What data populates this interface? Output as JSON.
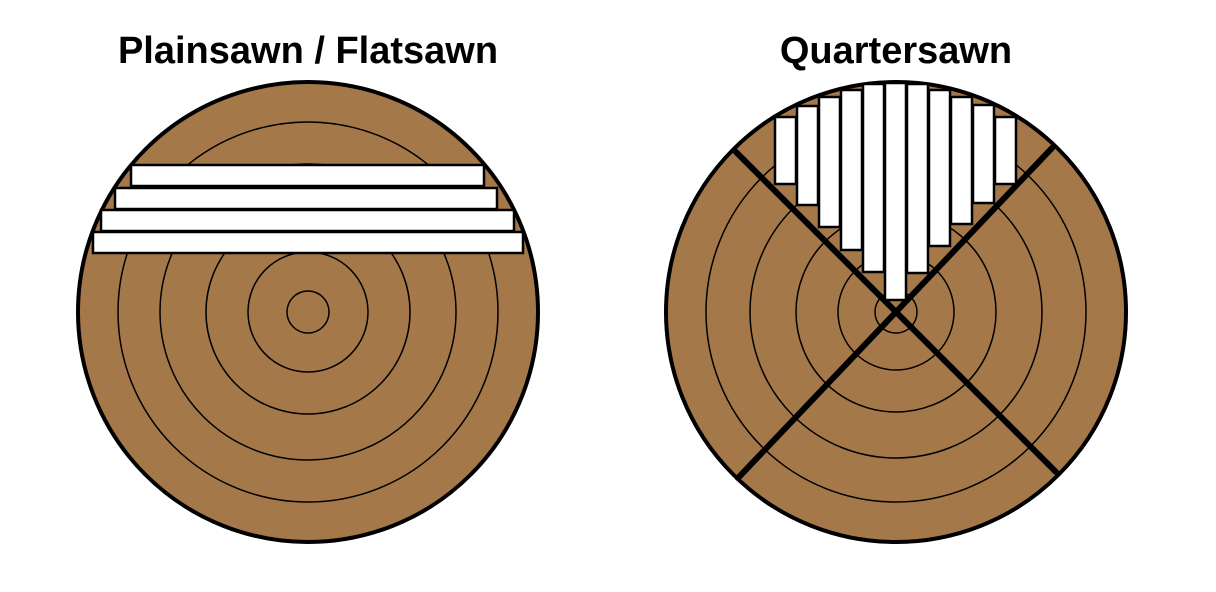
{
  "colors": {
    "wood": "#a5784a",
    "board": "#ffffff",
    "outline": "#000000",
    "background": "#ffffff"
  },
  "diagrams": [
    {
      "title": "Plainsawn / Flatsawn",
      "cut_method": "plainsawn"
    },
    {
      "title": "Quartersawn",
      "cut_method": "quartersawn"
    }
  ]
}
